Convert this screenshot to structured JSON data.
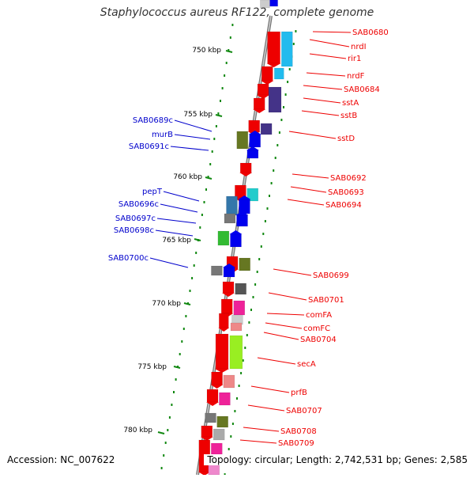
{
  "title": "Staphylococcus aureus RF122, complete genome",
  "footer": {
    "accession": "Accession: NC_007622",
    "topology": "Topology: circular; Length: 2,742,531 bp; Genes: 2,585"
  },
  "colors": {
    "forward_label": "#ee0000",
    "reverse_label": "#0000cc",
    "tick": "#118811",
    "backbone": "#999999"
  },
  "ticks": [
    "750 kbp",
    "755 kbp",
    "760 kbp",
    "765 kbp",
    "770 kbp",
    "775 kbp",
    "780 kbp"
  ],
  "right_labels": [
    "SAB0680",
    "nrdI",
    "rir1",
    "nrdF",
    "SAB0684",
    "sstA",
    "sstB",
    "sstD",
    "SAB0692",
    "SAB0693",
    "SAB0694",
    "SAB0699",
    "SAB0701",
    "comFA",
    "comFC",
    "SAB0704",
    "secA",
    "prfB",
    "SAB0707",
    "SAB0708",
    "SAB0709"
  ],
  "left_labels": [
    "SAB0689c",
    "murB",
    "SAB0691c",
    "pepT",
    "SAB0696c",
    "SAB0697c",
    "SAB0698c",
    "SAB0700c"
  ]
}
